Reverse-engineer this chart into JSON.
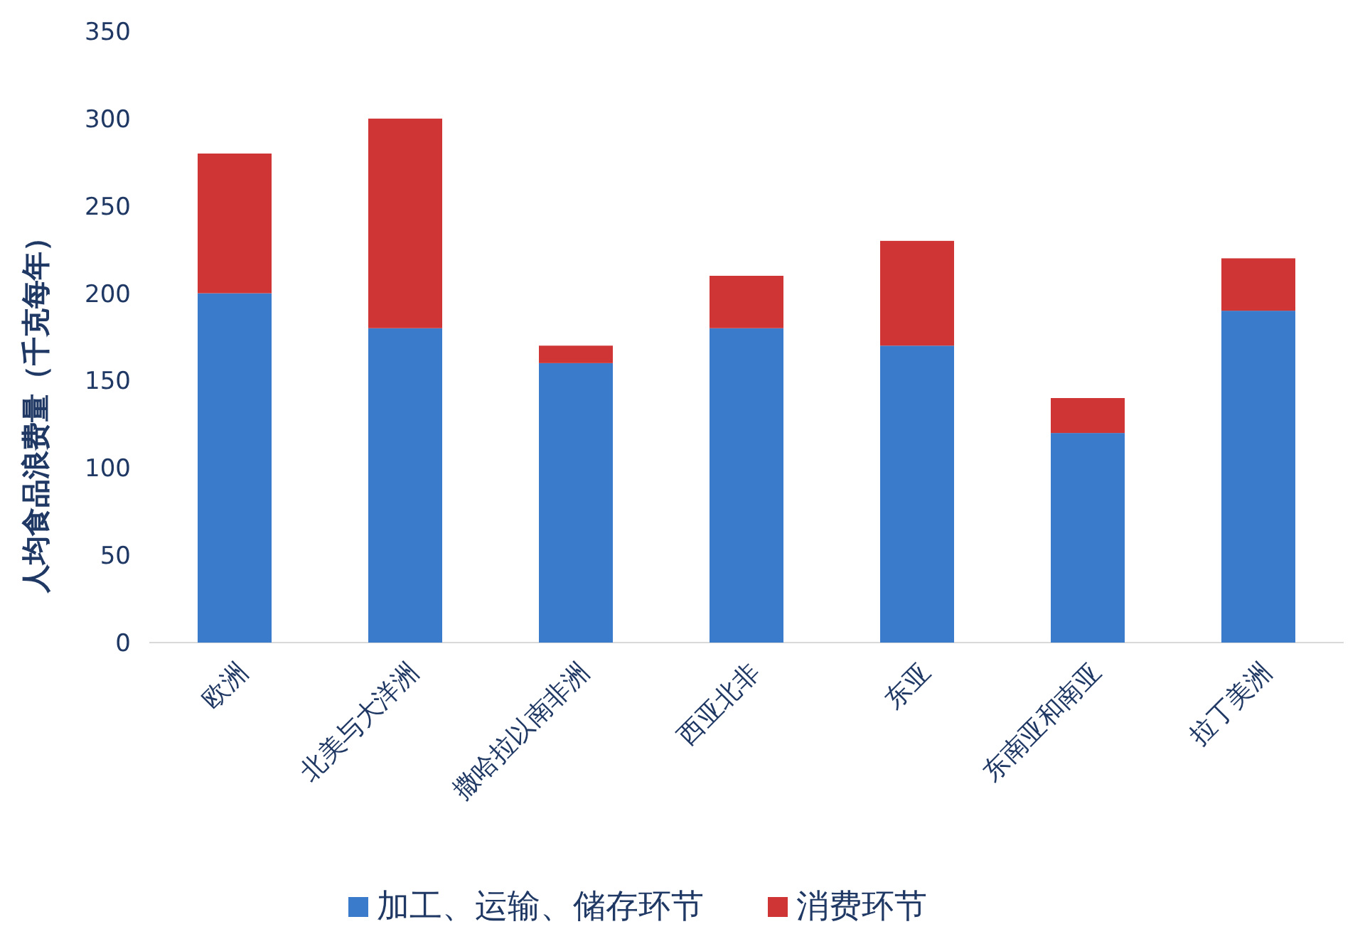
{
  "chart_data": {
    "type": "bar",
    "stacked": true,
    "ylabel": "人均食品浪费量（千克每年）",
    "categories": [
      "欧洲",
      "北美与大洋洲",
      "撒哈拉以南非洲",
      "西亚北非",
      "东亚",
      "东南亚和南亚",
      "拉丁美洲"
    ],
    "series": [
      {
        "name": "加工、运输、储存环节",
        "color": "#3a7bcc",
        "values": [
          200,
          180,
          160,
          180,
          170,
          120,
          190
        ]
      },
      {
        "name": "消费环节",
        "color": "#cf3535",
        "values": [
          80,
          120,
          10,
          30,
          60,
          20,
          30
        ]
      }
    ],
    "ylim": [
      0,
      350
    ],
    "yticks": [
      0,
      50,
      100,
      150,
      200,
      250,
      300,
      350
    ],
    "legend": "bottom",
    "grid": false
  }
}
